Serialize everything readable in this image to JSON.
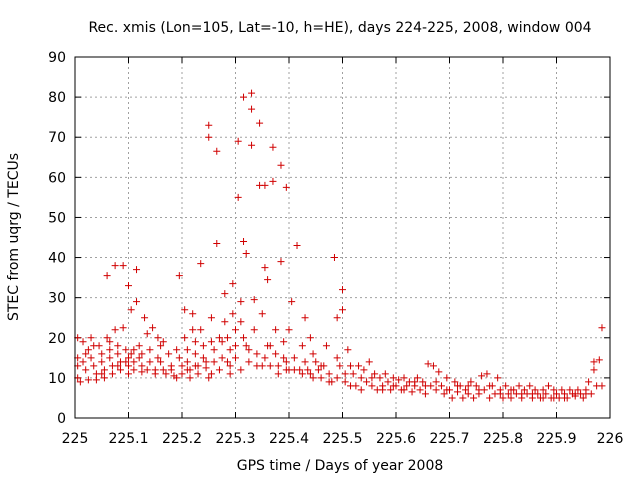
{
  "chart_data": {
    "type": "scatter",
    "title": "Rec. xmis (Lon=105, Lat=-10, h=HE), days 224-225, 2008, window 004",
    "xlabel": "GPS time / Days of year 2008",
    "ylabel": "STEC from uqrg / TECUs",
    "xlim": [
      225,
      226
    ],
    "ylim": [
      0,
      90
    ],
    "xticks": [
      "225",
      "225.1",
      "225.2",
      "225.3",
      "225.4",
      "225.5",
      "225.6",
      "225.7",
      "225.8",
      "225.9",
      "226"
    ],
    "yticks": [
      "0",
      "10",
      "20",
      "30",
      "40",
      "50",
      "60",
      "70",
      "80",
      "90"
    ],
    "grid": true,
    "marker": "plus",
    "color": "#d00000",
    "points": [
      [
        225.005,
        20
      ],
      [
        225.005,
        15
      ],
      [
        225.005,
        13
      ],
      [
        225.005,
        10
      ],
      [
        225.01,
        9
      ],
      [
        225.015,
        19
      ],
      [
        225.015,
        14
      ],
      [
        225.02,
        12
      ],
      [
        225.025,
        17
      ],
      [
        225.025,
        9.5
      ],
      [
        225.03,
        20
      ],
      [
        225.03,
        15
      ],
      [
        225.035,
        13
      ],
      [
        225.04,
        11
      ],
      [
        225.04,
        9.5
      ],
      [
        225.045,
        18
      ],
      [
        225.05,
        16
      ],
      [
        225.05,
        14
      ],
      [
        225.055,
        12
      ],
      [
        225.055,
        10
      ],
      [
        225.06,
        35.5
      ],
      [
        225.06,
        20
      ],
      [
        225.065,
        17
      ],
      [
        225.065,
        15
      ],
      [
        225.07,
        13
      ],
      [
        225.07,
        11
      ],
      [
        225.075,
        38
      ],
      [
        225.075,
        22
      ],
      [
        225.08,
        18
      ],
      [
        225.08,
        16
      ],
      [
        225.085,
        14
      ],
      [
        225.085,
        12
      ],
      [
        225.09,
        38
      ],
      [
        225.09,
        22.5
      ],
      [
        225.095,
        17
      ],
      [
        225.1,
        15
      ],
      [
        225.1,
        13
      ],
      [
        225.1,
        11
      ],
      [
        225.1,
        33
      ],
      [
        225.105,
        27
      ],
      [
        225.105,
        16
      ],
      [
        225.11,
        14
      ],
      [
        225.11,
        12
      ],
      [
        225.115,
        37
      ],
      [
        225.115,
        29
      ],
      [
        225.12,
        18
      ],
      [
        225.12,
        15
      ],
      [
        225.125,
        13
      ],
      [
        225.125,
        11.5
      ],
      [
        225.13,
        25
      ],
      [
        225.135,
        21
      ],
      [
        225.14,
        17
      ],
      [
        225.14,
        14
      ],
      [
        225.145,
        22.5
      ],
      [
        225.15,
        12
      ],
      [
        225.15,
        11
      ],
      [
        225.155,
        20
      ],
      [
        225.16,
        18
      ],
      [
        225.16,
        14
      ],
      [
        225.165,
        12
      ],
      [
        225.17,
        11
      ],
      [
        225.175,
        16
      ],
      [
        225.18,
        13
      ],
      [
        225.185,
        10.5
      ],
      [
        225.19,
        17
      ],
      [
        225.195,
        35.5
      ],
      [
        225.195,
        15
      ],
      [
        225.2,
        13
      ],
      [
        225.2,
        11
      ],
      [
        225.205,
        27
      ],
      [
        225.205,
        20
      ],
      [
        225.21,
        17
      ],
      [
        225.21,
        14
      ],
      [
        225.215,
        12
      ],
      [
        225.215,
        10
      ],
      [
        225.22,
        26
      ],
      [
        225.22,
        22
      ],
      [
        225.225,
        19
      ],
      [
        225.225,
        16
      ],
      [
        225.23,
        13
      ],
      [
        225.23,
        11
      ],
      [
        225.235,
        38.5
      ],
      [
        225.235,
        22
      ],
      [
        225.24,
        18
      ],
      [
        225.24,
        15
      ],
      [
        225.245,
        12.5
      ],
      [
        225.25,
        73
      ],
      [
        225.25,
        70
      ],
      [
        225.25,
        10
      ],
      [
        225.255,
        25
      ],
      [
        225.255,
        19
      ],
      [
        225.26,
        17
      ],
      [
        225.26,
        14
      ],
      [
        225.265,
        43.5
      ],
      [
        225.265,
        66.5
      ],
      [
        225.27,
        12
      ],
      [
        225.27,
        20
      ],
      [
        225.275,
        15
      ],
      [
        225.28,
        31
      ],
      [
        225.28,
        24
      ],
      [
        225.285,
        20
      ],
      [
        225.29,
        17
      ],
      [
        225.29,
        13
      ],
      [
        225.295,
        33.5
      ],
      [
        225.295,
        26
      ],
      [
        225.3,
        22
      ],
      [
        225.3,
        18
      ],
      [
        225.3,
        15
      ],
      [
        225.305,
        55
      ],
      [
        225.305,
        69
      ],
      [
        225.31,
        29
      ],
      [
        225.31,
        24
      ],
      [
        225.315,
        20
      ],
      [
        225.315,
        80
      ],
      [
        225.315,
        44
      ],
      [
        225.32,
        41
      ],
      [
        225.32,
        18
      ],
      [
        225.325,
        14
      ],
      [
        225.33,
        81
      ],
      [
        225.33,
        77
      ],
      [
        225.33,
        68
      ],
      [
        225.335,
        29.5
      ],
      [
        225.335,
        22
      ],
      [
        225.34,
        16
      ],
      [
        225.345,
        58
      ],
      [
        225.345,
        73.5
      ],
      [
        225.35,
        26
      ],
      [
        225.35,
        13
      ],
      [
        225.355,
        58
      ],
      [
        225.355,
        37.5
      ],
      [
        225.36,
        34.5
      ],
      [
        225.36,
        18
      ],
      [
        225.365,
        13
      ],
      [
        225.37,
        67.5
      ],
      [
        225.37,
        59
      ],
      [
        225.375,
        22
      ],
      [
        225.375,
        16
      ],
      [
        225.38,
        13
      ],
      [
        225.385,
        39
      ],
      [
        225.385,
        63
      ],
      [
        225.39,
        19
      ],
      [
        225.39,
        15
      ],
      [
        225.395,
        57.5
      ],
      [
        225.395,
        12
      ],
      [
        225.4,
        22
      ],
      [
        225.4,
        12
      ],
      [
        225.405,
        29
      ],
      [
        225.41,
        12
      ],
      [
        225.415,
        43
      ],
      [
        225.42,
        12
      ],
      [
        225.425,
        18
      ],
      [
        225.43,
        25
      ],
      [
        225.43,
        14
      ],
      [
        225.435,
        12
      ],
      [
        225.44,
        20
      ],
      [
        225.44,
        11
      ],
      [
        225.445,
        16
      ],
      [
        225.45,
        14
      ],
      [
        225.455,
        12
      ],
      [
        225.46,
        10
      ],
      [
        225.465,
        13
      ],
      [
        225.47,
        18
      ],
      [
        225.475,
        11
      ],
      [
        225.48,
        9
      ],
      [
        225.485,
        40
      ],
      [
        225.49,
        25
      ],
      [
        225.49,
        15
      ],
      [
        225.495,
        13
      ],
      [
        225.5,
        32
      ],
      [
        225.5,
        27
      ],
      [
        225.505,
        11
      ],
      [
        225.505,
        9
      ],
      [
        225.51,
        17
      ],
      [
        225.515,
        13
      ],
      [
        225.52,
        11
      ],
      [
        225.525,
        8
      ],
      [
        225.53,
        13
      ],
      [
        225.535,
        10
      ],
      [
        225.54,
        12
      ],
      [
        225.545,
        9
      ],
      [
        225.55,
        14
      ],
      [
        225.555,
        8
      ],
      [
        225.56,
        11
      ],
      [
        225.565,
        7
      ],
      [
        225.57,
        10
      ],
      [
        225.575,
        8
      ],
      [
        225.58,
        11
      ],
      [
        225.585,
        9
      ],
      [
        225.59,
        7
      ],
      [
        225.595,
        10
      ],
      [
        225.6,
        8
      ],
      [
        225.605,
        9.5
      ],
      [
        225.61,
        7
      ],
      [
        225.615,
        10
      ],
      [
        225.62,
        8
      ],
      [
        225.625,
        9
      ],
      [
        225.63,
        6.5
      ],
      [
        225.635,
        8
      ],
      [
        225.64,
        10
      ],
      [
        225.645,
        7
      ],
      [
        225.65,
        9
      ],
      [
        225.655,
        6
      ],
      [
        225.66,
        13.5
      ],
      [
        225.665,
        8
      ],
      [
        225.67,
        13
      ],
      [
        225.675,
        7
      ],
      [
        225.68,
        11.5
      ],
      [
        225.685,
        8
      ],
      [
        225.69,
        6
      ],
      [
        225.695,
        10
      ],
      [
        225.7,
        7
      ],
      [
        225.705,
        5
      ],
      [
        225.71,
        9
      ],
      [
        225.715,
        6.5
      ],
      [
        225.72,
        8
      ],
      [
        225.725,
        5
      ],
      [
        225.73,
        7
      ],
      [
        225.735,
        6
      ],
      [
        225.74,
        9
      ],
      [
        225.745,
        5
      ],
      [
        225.75,
        8
      ],
      [
        225.755,
        6
      ],
      [
        225.76,
        10.5
      ],
      [
        225.765,
        7
      ],
      [
        225.77,
        11
      ],
      [
        225.775,
        5
      ],
      [
        225.78,
        8
      ],
      [
        225.785,
        6
      ],
      [
        225.79,
        10
      ],
      [
        225.795,
        7
      ],
      [
        225.8,
        5
      ],
      [
        225.805,
        8
      ],
      [
        225.81,
        6
      ],
      [
        225.815,
        5
      ],
      [
        225.82,
        7
      ],
      [
        225.825,
        6
      ],
      [
        225.83,
        8
      ],
      [
        225.835,
        5
      ],
      [
        225.84,
        7
      ],
      [
        225.845,
        6
      ],
      [
        225.85,
        8
      ],
      [
        225.855,
        5
      ],
      [
        225.86,
        7
      ],
      [
        225.865,
        6
      ],
      [
        225.87,
        5
      ],
      [
        225.875,
        7
      ],
      [
        225.88,
        6
      ],
      [
        225.885,
        8
      ],
      [
        225.89,
        5
      ],
      [
        225.895,
        7
      ],
      [
        225.9,
        6
      ],
      [
        225.905,
        5
      ],
      [
        225.91,
        7
      ],
      [
        225.915,
        6
      ],
      [
        225.92,
        5
      ],
      [
        225.925,
        7
      ],
      [
        225.93,
        6
      ],
      [
        225.935,
        5.5
      ],
      [
        225.94,
        7
      ],
      [
        225.945,
        6
      ],
      [
        225.95,
        5
      ],
      [
        225.955,
        7
      ],
      [
        225.96,
        9
      ],
      [
        225.965,
        6
      ],
      [
        225.97,
        14
      ],
      [
        225.97,
        12
      ],
      [
        225.975,
        8
      ],
      [
        225.98,
        14.5
      ],
      [
        225.985,
        22.5
      ],
      [
        225.985,
        8
      ],
      [
        225.02,
        16
      ],
      [
        225.035,
        18
      ],
      [
        225.05,
        11
      ],
      [
        225.065,
        19
      ],
      [
        225.08,
        13
      ],
      [
        225.095,
        14
      ],
      [
        225.11,
        17
      ],
      [
        225.125,
        16
      ],
      [
        225.135,
        12
      ],
      [
        225.155,
        15
      ],
      [
        225.165,
        19
      ],
      [
        225.18,
        12
      ],
      [
        225.19,
        10
      ],
      [
        225.21,
        12
      ],
      [
        225.225,
        13
      ],
      [
        225.245,
        14
      ],
      [
        225.255,
        11
      ],
      [
        225.275,
        19
      ],
      [
        225.285,
        14
      ],
      [
        225.29,
        11
      ],
      [
        225.31,
        12
      ],
      [
        225.325,
        17
      ],
      [
        225.34,
        13
      ],
      [
        225.355,
        15
      ],
      [
        225.365,
        18
      ],
      [
        225.38,
        11
      ],
      [
        225.395,
        14
      ],
      [
        225.41,
        15
      ],
      [
        225.425,
        11
      ],
      [
        225.445,
        10
      ],
      [
        225.46,
        13
      ],
      [
        225.475,
        9
      ],
      [
        225.49,
        10
      ],
      [
        225.515,
        8
      ],
      [
        225.535,
        7
      ],
      [
        225.555,
        10
      ],
      [
        225.575,
        7
      ],
      [
        225.595,
        8
      ],
      [
        225.615,
        7
      ],
      [
        225.635,
        9
      ],
      [
        225.655,
        8
      ],
      [
        225.675,
        9
      ],
      [
        225.695,
        7
      ],
      [
        225.715,
        8
      ],
      [
        225.735,
        8
      ],
      [
        225.755,
        7
      ],
      [
        225.775,
        8
      ],
      [
        225.795,
        6
      ],
      [
        225.815,
        7
      ],
      [
        225.835,
        6
      ],
      [
        225.855,
        6
      ],
      [
        225.875,
        5
      ],
      [
        225.895,
        5
      ],
      [
        225.915,
        5
      ],
      [
        225.935,
        6
      ],
      [
        225.955,
        6
      ]
    ]
  }
}
